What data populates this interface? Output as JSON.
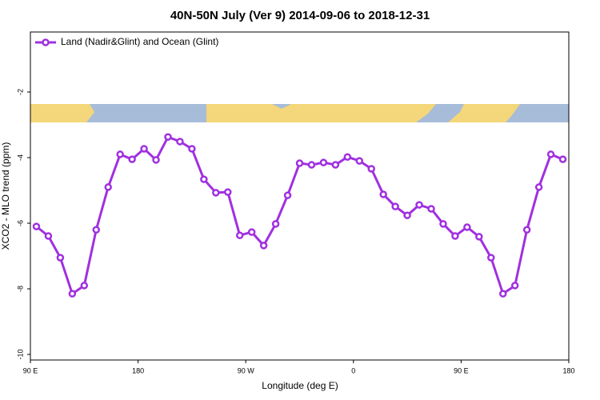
{
  "chart_data": {
    "type": "line",
    "title": "40N-50N July (Ver 9)   2014-09-06 to 2018-12-31",
    "x_label": "Longitude (deg E)",
    "y_label": "XCO2 - MLO trend (ppm)",
    "x": [
      95,
      105,
      115,
      125,
      135,
      145,
      155,
      165,
      175,
      185,
      195,
      205,
      215,
      225,
      235,
      245,
      255,
      265,
      275,
      285,
      295,
      305,
      315,
      325,
      335,
      345,
      355,
      365,
      375,
      385,
      395,
      405,
      415,
      425,
      435,
      445,
      455,
      465,
      475,
      485,
      495,
      505,
      515,
      525,
      535
    ],
    "series": [
      {
        "name": "Land (Nadir&Glint) and Ocean (Glint)",
        "color": "#a030e0",
        "values": [
          -6.1,
          -6.39,
          -7.05,
          -8.15,
          -7.9,
          -6.2,
          -4.9,
          -3.9,
          -4.05,
          -3.73,
          -4.07,
          -3.37,
          -3.51,
          -3.73,
          -4.66,
          -5.07,
          -5.05,
          -6.37,
          -6.27,
          -6.68,
          -6.02,
          -5.15,
          -4.17,
          -4.22,
          -4.15,
          -4.22,
          -3.98,
          -4.1,
          -4.34,
          -5.12,
          -5.49,
          -5.76,
          -5.44,
          -5.56,
          -6.02,
          -6.39,
          -6.12,
          -6.41,
          -7.05,
          -8.15,
          -7.9,
          -6.2,
          -4.9,
          -3.9,
          -4.05
        ]
      }
    ],
    "xlim": [
      90,
      540
    ],
    "xticks": [
      {
        "value": 90,
        "label": "90 E"
      },
      180,
      {
        "value": 270,
        "label": "90 W"
      },
      {
        "value": 360,
        "label": "0"
      },
      {
        "value": 450,
        "label": "90 E"
      },
      {
        "value": 540,
        "label": "180"
      }
    ],
    "ylim": [
      -10.17,
      -0.17
    ],
    "yticks": [
      -2,
      -4,
      -6,
      -8,
      -10
    ],
    "legend": "top-left"
  }
}
